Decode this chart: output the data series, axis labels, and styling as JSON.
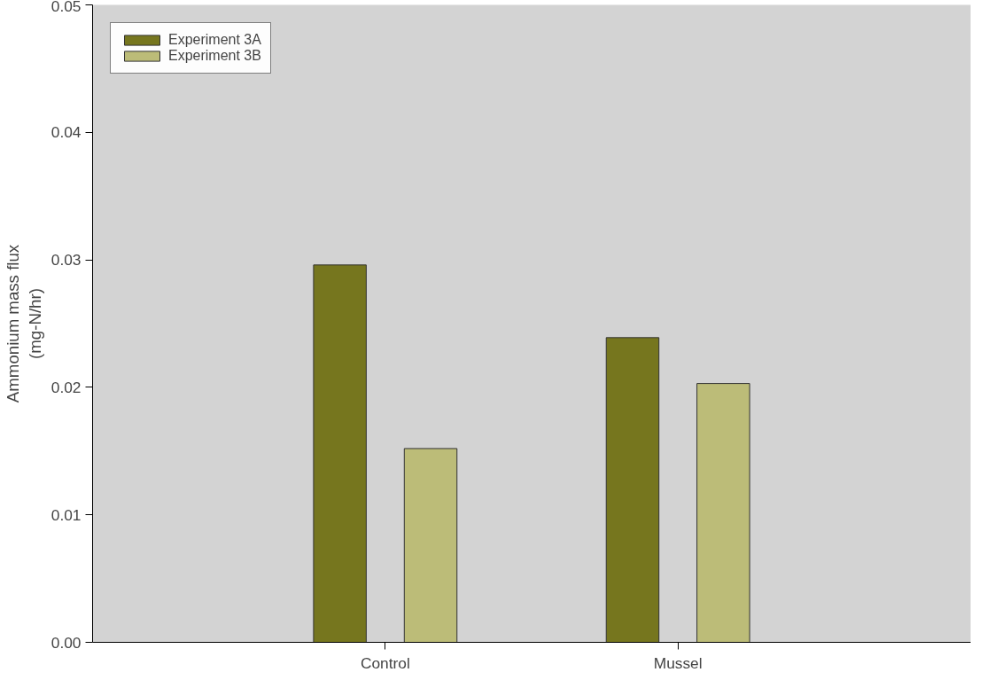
{
  "chart_data": {
    "type": "bar",
    "ylabel": "Ammonium mass flux\n(mg-N/hr)",
    "categories": [
      "Control",
      "Mussel"
    ],
    "series": [
      {
        "name": "Experiment 3A",
        "color": "#76761e",
        "values": [
          0.0296,
          0.0239
        ]
      },
      {
        "name": "Experiment 3B",
        "color": "#bcbc78",
        "values": [
          0.0152,
          0.0203
        ]
      }
    ],
    "ylim": [
      0,
      0.05
    ],
    "yticks": [
      {
        "value": 0,
        "label": "0.00"
      },
      {
        "value": 0.01,
        "label": "0.01"
      },
      {
        "value": 0.02,
        "label": "0.02"
      },
      {
        "value": 0.03,
        "label": "0.03"
      },
      {
        "value": 0.04,
        "label": "0.04"
      },
      {
        "value": 0.05,
        "label": "0.05"
      }
    ],
    "grid": false,
    "legend": "top left"
  }
}
